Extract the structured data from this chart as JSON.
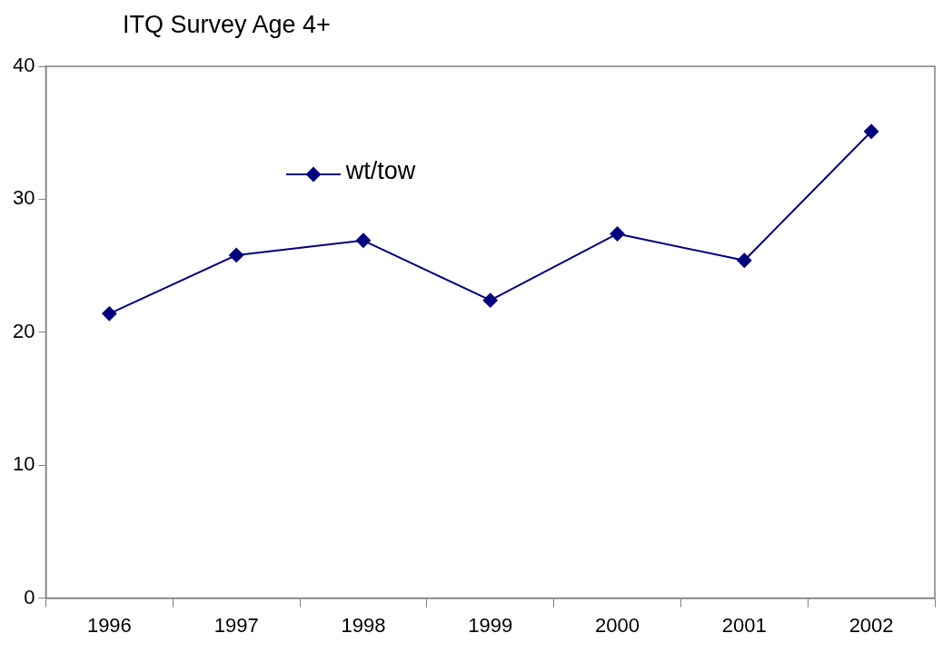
{
  "chart_data": {
    "type": "line",
    "title": "ITQ Survey Age 4+",
    "categories": [
      "1996",
      "1997",
      "1998",
      "1999",
      "2000",
      "2001",
      "2002"
    ],
    "series": [
      {
        "name": "wt/tow",
        "color": "#000080",
        "values": [
          21.4,
          25.8,
          26.9,
          22.4,
          27.4,
          25.4,
          35.1
        ]
      }
    ],
    "ylim": [
      0,
      40
    ],
    "yticks": [
      0,
      10,
      20,
      30,
      40
    ],
    "grid": false,
    "legend": "top left",
    "marker": "diamond",
    "line_style": "solid"
  }
}
